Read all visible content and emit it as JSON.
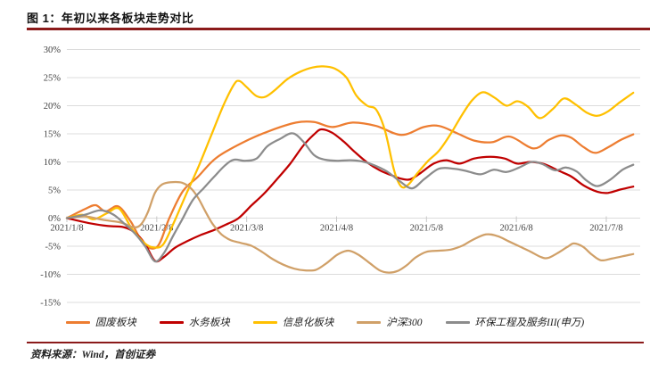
{
  "figure": {
    "title": "图 1：年初以来各板块走势对比",
    "source": "资料来源：Wind，首创证券"
  },
  "colors": {
    "rule_red": "#8B1A1A",
    "grid": "#DCDCDC",
    "axis_text": "#3F3F3F",
    "tick": "#C8C8C8"
  },
  "chart_data": {
    "type": "line",
    "title": "年初以来各板块走势对比",
    "x_tick_labels": [
      "2021/1/8",
      "2021/2/8",
      "2021/3/8",
      "2021/4/8",
      "2021/5/8",
      "2021/6/8",
      "2021/7/8"
    ],
    "x_tick_months": [
      0,
      1,
      2,
      3,
      4,
      5,
      6
    ],
    "y_ticks": [
      30,
      25,
      20,
      15,
      10,
      5,
      0,
      -5,
      -10,
      -15
    ],
    "y_tick_suffix": "%",
    "ylim": [
      -15,
      30
    ],
    "grid": true,
    "legend_position": "bottom",
    "series": [
      {
        "name": "固废板块",
        "color": "#ED7D31",
        "points": [
          [
            0,
            0
          ],
          [
            0.2,
            1.6
          ],
          [
            0.32,
            2.3
          ],
          [
            0.43,
            1.2
          ],
          [
            0.57,
            2.1
          ],
          [
            0.71,
            -0.6
          ],
          [
            0.86,
            -4.7
          ],
          [
            1.01,
            -5
          ],
          [
            1.14,
            0
          ],
          [
            1.29,
            4.8
          ],
          [
            1.46,
            7.4
          ],
          [
            1.66,
            10.7
          ],
          [
            1.95,
            13.4
          ],
          [
            2.25,
            15.5
          ],
          [
            2.55,
            17
          ],
          [
            2.75,
            17.1
          ],
          [
            2.95,
            16.2
          ],
          [
            3.18,
            17
          ],
          [
            3.44,
            16.4
          ],
          [
            3.72,
            14.8
          ],
          [
            3.97,
            16.2
          ],
          [
            4.14,
            16.4
          ],
          [
            4.34,
            15.1
          ],
          [
            4.53,
            13.8
          ],
          [
            4.73,
            13.5
          ],
          [
            4.93,
            14.5
          ],
          [
            5.19,
            12.4
          ],
          [
            5.36,
            13.9
          ],
          [
            5.49,
            14.7
          ],
          [
            5.61,
            14.3
          ],
          [
            5.75,
            12.6
          ],
          [
            5.88,
            11.6
          ],
          [
            6.02,
            12.6
          ],
          [
            6.16,
            13.9
          ],
          [
            6.3,
            14.9
          ]
        ]
      },
      {
        "name": "水务板块",
        "color": "#C00000",
        "points": [
          [
            0,
            0
          ],
          [
            0.25,
            -0.9
          ],
          [
            0.45,
            -1.4
          ],
          [
            0.63,
            -1.6
          ],
          [
            0.76,
            -2.6
          ],
          [
            0.87,
            -4.6
          ],
          [
            0.98,
            -7.6
          ],
          [
            1.08,
            -6.9
          ],
          [
            1.2,
            -5.3
          ],
          [
            1.34,
            -4.1
          ],
          [
            1.49,
            -3
          ],
          [
            1.64,
            -2.1
          ],
          [
            1.79,
            -1
          ],
          [
            1.91,
            0
          ],
          [
            2.05,
            2.2
          ],
          [
            2.19,
            4.3
          ],
          [
            2.33,
            6.8
          ],
          [
            2.48,
            9.6
          ],
          [
            2.63,
            12.9
          ],
          [
            2.75,
            14.9
          ],
          [
            2.83,
            15.8
          ],
          [
            2.95,
            15.2
          ],
          [
            3.08,
            13.6
          ],
          [
            3.2,
            11.8
          ],
          [
            3.34,
            9.9
          ],
          [
            3.48,
            8.5
          ],
          [
            3.6,
            7.7
          ],
          [
            3.72,
            7
          ],
          [
            3.82,
            6.9
          ],
          [
            3.94,
            8.1
          ],
          [
            4.08,
            9.7
          ],
          [
            4.22,
            10.3
          ],
          [
            4.37,
            9.7
          ],
          [
            4.53,
            10.6
          ],
          [
            4.71,
            10.9
          ],
          [
            4.87,
            10.6
          ],
          [
            5.01,
            9.7
          ],
          [
            5.16,
            10
          ],
          [
            5.31,
            9.6
          ],
          [
            5.46,
            8.5
          ],
          [
            5.61,
            7.4
          ],
          [
            5.75,
            5.8
          ],
          [
            5.9,
            4.7
          ],
          [
            6.02,
            4.5
          ],
          [
            6.16,
            5.1
          ],
          [
            6.3,
            5.6
          ]
        ]
      },
      {
        "name": "信息化板块",
        "color": "#FFC000",
        "points": [
          [
            0,
            0
          ],
          [
            0.17,
            0.6
          ],
          [
            0.3,
            -0.2
          ],
          [
            0.45,
            0.9
          ],
          [
            0.58,
            1.7
          ],
          [
            0.72,
            -1.8
          ],
          [
            0.86,
            -4.4
          ],
          [
            0.96,
            -5.2
          ],
          [
            1.07,
            -4.7
          ],
          [
            1.19,
            -0.8
          ],
          [
            1.32,
            4
          ],
          [
            1.46,
            9
          ],
          [
            1.6,
            14.5
          ],
          [
            1.74,
            20
          ],
          [
            1.86,
            23.8
          ],
          [
            1.92,
            24.4
          ],
          [
            2,
            23.3
          ],
          [
            2.11,
            21.7
          ],
          [
            2.21,
            21.6
          ],
          [
            2.33,
            23
          ],
          [
            2.45,
            24.7
          ],
          [
            2.59,
            26
          ],
          [
            2.73,
            26.8
          ],
          [
            2.85,
            27
          ],
          [
            2.98,
            26.6
          ],
          [
            3.11,
            25
          ],
          [
            3.22,
            21.8
          ],
          [
            3.34,
            20
          ],
          [
            3.44,
            19.3
          ],
          [
            3.54,
            15.5
          ],
          [
            3.64,
            8.5
          ],
          [
            3.72,
            5.6
          ],
          [
            3.8,
            6
          ],
          [
            3.9,
            8
          ],
          [
            4.02,
            10.2
          ],
          [
            4.14,
            12
          ],
          [
            4.27,
            15
          ],
          [
            4.4,
            18.5
          ],
          [
            4.51,
            21
          ],
          [
            4.63,
            22.4
          ],
          [
            4.76,
            21.4
          ],
          [
            4.89,
            20
          ],
          [
            5.01,
            20.8
          ],
          [
            5.13,
            19.8
          ],
          [
            5.26,
            17.8
          ],
          [
            5.41,
            19.5
          ],
          [
            5.53,
            21.3
          ],
          [
            5.66,
            20.2
          ],
          [
            5.78,
            18.8
          ],
          [
            5.9,
            18.2
          ],
          [
            6.02,
            19
          ],
          [
            6.15,
            20.6
          ],
          [
            6.3,
            22.3
          ]
        ]
      },
      {
        "name": "沪深300",
        "color": "#D0A068",
        "points": [
          [
            0,
            0
          ],
          [
            0.2,
            0.3
          ],
          [
            0.4,
            -0.3
          ],
          [
            0.6,
            -0.8
          ],
          [
            0.74,
            -1.6
          ],
          [
            0.82,
            -1.2
          ],
          [
            0.9,
            1
          ],
          [
            0.98,
            4.5
          ],
          [
            1.06,
            6
          ],
          [
            1.16,
            6.4
          ],
          [
            1.28,
            6.3
          ],
          [
            1.38,
            5.3
          ],
          [
            1.46,
            3.6
          ],
          [
            1.54,
            1.2
          ],
          [
            1.62,
            -1
          ],
          [
            1.72,
            -2.9
          ],
          [
            1.82,
            -3.9
          ],
          [
            1.93,
            -4.4
          ],
          [
            2.05,
            -4.9
          ],
          [
            2.17,
            -6
          ],
          [
            2.29,
            -7.3
          ],
          [
            2.41,
            -8.3
          ],
          [
            2.53,
            -9
          ],
          [
            2.65,
            -9.3
          ],
          [
            2.77,
            -9.2
          ],
          [
            2.89,
            -8
          ],
          [
            3.01,
            -6.5
          ],
          [
            3.13,
            -5.8
          ],
          [
            3.24,
            -6.5
          ],
          [
            3.36,
            -7.9
          ],
          [
            3.48,
            -9.3
          ],
          [
            3.58,
            -9.7
          ],
          [
            3.68,
            -9.4
          ],
          [
            3.78,
            -8.4
          ],
          [
            3.88,
            -7
          ],
          [
            4,
            -6
          ],
          [
            4.14,
            -5.8
          ],
          [
            4.27,
            -5.6
          ],
          [
            4.4,
            -4.9
          ],
          [
            4.51,
            -3.9
          ],
          [
            4.66,
            -2.9
          ],
          [
            4.79,
            -3.2
          ],
          [
            4.91,
            -4.1
          ],
          [
            5.03,
            -5
          ],
          [
            5.15,
            -5.9
          ],
          [
            5.27,
            -6.9
          ],
          [
            5.35,
            -7.1
          ],
          [
            5.45,
            -6.3
          ],
          [
            5.57,
            -5.1
          ],
          [
            5.64,
            -4.5
          ],
          [
            5.74,
            -5.1
          ],
          [
            5.84,
            -6.5
          ],
          [
            5.94,
            -7.5
          ],
          [
            6.06,
            -7.2
          ],
          [
            6.18,
            -6.8
          ],
          [
            6.3,
            -6.4
          ]
        ]
      },
      {
        "name": "环保工程及服务III(申万)",
        "color": "#8C8C8C",
        "points": [
          [
            0,
            0
          ],
          [
            0.2,
            0.6
          ],
          [
            0.37,
            1.4
          ],
          [
            0.51,
            0.7
          ],
          [
            0.64,
            -1
          ],
          [
            0.76,
            -2.8
          ],
          [
            0.87,
            -5
          ],
          [
            0.98,
            -7.7
          ],
          [
            1.08,
            -6.2
          ],
          [
            1.18,
            -3.2
          ],
          [
            1.28,
            -0.3
          ],
          [
            1.4,
            3.2
          ],
          [
            1.52,
            5.3
          ],
          [
            1.64,
            7.4
          ],
          [
            1.76,
            9.4
          ],
          [
            1.86,
            10.4
          ],
          [
            1.98,
            10.2
          ],
          [
            2.11,
            10.6
          ],
          [
            2.23,
            12.8
          ],
          [
            2.37,
            14.1
          ],
          [
            2.51,
            15.1
          ],
          [
            2.63,
            13.6
          ],
          [
            2.75,
            11.2
          ],
          [
            2.87,
            10.4
          ],
          [
            3.01,
            10.2
          ],
          [
            3.15,
            10.3
          ],
          [
            3.28,
            10.1
          ],
          [
            3.42,
            9.4
          ],
          [
            3.56,
            8.3
          ],
          [
            3.7,
            6.6
          ],
          [
            3.84,
            5.3
          ],
          [
            3.98,
            7
          ],
          [
            4.14,
            8.8
          ],
          [
            4.3,
            8.8
          ],
          [
            4.44,
            8.4
          ],
          [
            4.6,
            7.8
          ],
          [
            4.75,
            8.6
          ],
          [
            4.89,
            8.2
          ],
          [
            5.03,
            9
          ],
          [
            5.17,
            10
          ],
          [
            5.29,
            9.6
          ],
          [
            5.43,
            8.5
          ],
          [
            5.55,
            9
          ],
          [
            5.67,
            8.3
          ],
          [
            5.78,
            6.7
          ],
          [
            5.9,
            5.7
          ],
          [
            6.04,
            6.8
          ],
          [
            6.18,
            8.6
          ],
          [
            6.3,
            9.5
          ]
        ]
      }
    ]
  }
}
